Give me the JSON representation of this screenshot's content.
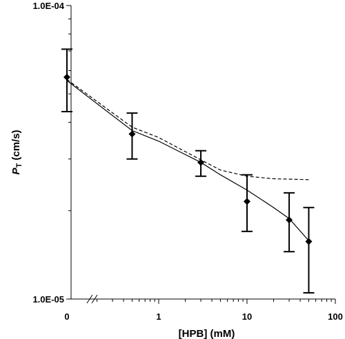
{
  "chart_data": {
    "type": "scatter",
    "title": "",
    "xlabel": "[HPB] (mM)",
    "ylabel_main": "P",
    "ylabel_sub": "T",
    "ylabel_unit": " (cm/s)",
    "x_scale": "log (with axis break; x=0 drawn at left)",
    "y_scale": "log",
    "xlim": [
      0.1,
      100
    ],
    "ylim": [
      1e-05,
      0.0001
    ],
    "x_tick_labels": [
      "0",
      "1",
      "10",
      "100"
    ],
    "y_tick_labels": [
      "1.0E-05",
      "1.0E-04"
    ],
    "grid": false,
    "series": [
      {
        "style": "markers-with-error-bars",
        "marker": "diamond",
        "color": "#000000",
        "points": [
          {
            "x": 0,
            "y": 5.7e-05,
            "err_low": 4.35e-05,
            "err_high": 7.1e-05
          },
          {
            "x": 0.5,
            "y": 3.65e-05,
            "err_low": 3e-05,
            "err_high": 4.3e-05
          },
          {
            "x": 3,
            "y": 2.92e-05,
            "err_low": 2.62e-05,
            "err_high": 3.2e-05
          },
          {
            "x": 10,
            "y": 2.15e-05,
            "err_low": 1.7e-05,
            "err_high": 2.65e-05
          },
          {
            "x": 30,
            "y": 1.86e-05,
            "err_low": 1.45e-05,
            "err_high": 2.3e-05
          },
          {
            "x": 50,
            "y": 1.57e-05,
            "err_low": 1.05e-05,
            "err_high": 2.05e-05
          }
        ]
      },
      {
        "style": "solid-line",
        "color": "#000000",
        "points": [
          {
            "x": 0,
            "y": 5.55e-05
          },
          {
            "x": 0.5,
            "y": 3.75e-05
          },
          {
            "x": 1,
            "y": 3.45e-05
          },
          {
            "x": 3,
            "y": 2.92e-05
          },
          {
            "x": 5,
            "y": 2.65e-05
          },
          {
            "x": 10,
            "y": 2.35e-05
          },
          {
            "x": 20,
            "y": 2.05e-05
          },
          {
            "x": 30,
            "y": 1.88e-05
          },
          {
            "x": 50,
            "y": 1.58e-05
          }
        ]
      },
      {
        "style": "dashed-line",
        "color": "#000000",
        "points": [
          {
            "x": 0,
            "y": 5.6e-05
          },
          {
            "x": 0.5,
            "y": 3.85e-05
          },
          {
            "x": 1,
            "y": 3.55e-05
          },
          {
            "x": 3,
            "y": 2.98e-05
          },
          {
            "x": 5,
            "y": 2.75e-05
          },
          {
            "x": 10,
            "y": 2.62e-05
          },
          {
            "x": 20,
            "y": 2.57e-05
          },
          {
            "x": 50,
            "y": 2.55e-05
          }
        ]
      }
    ]
  }
}
